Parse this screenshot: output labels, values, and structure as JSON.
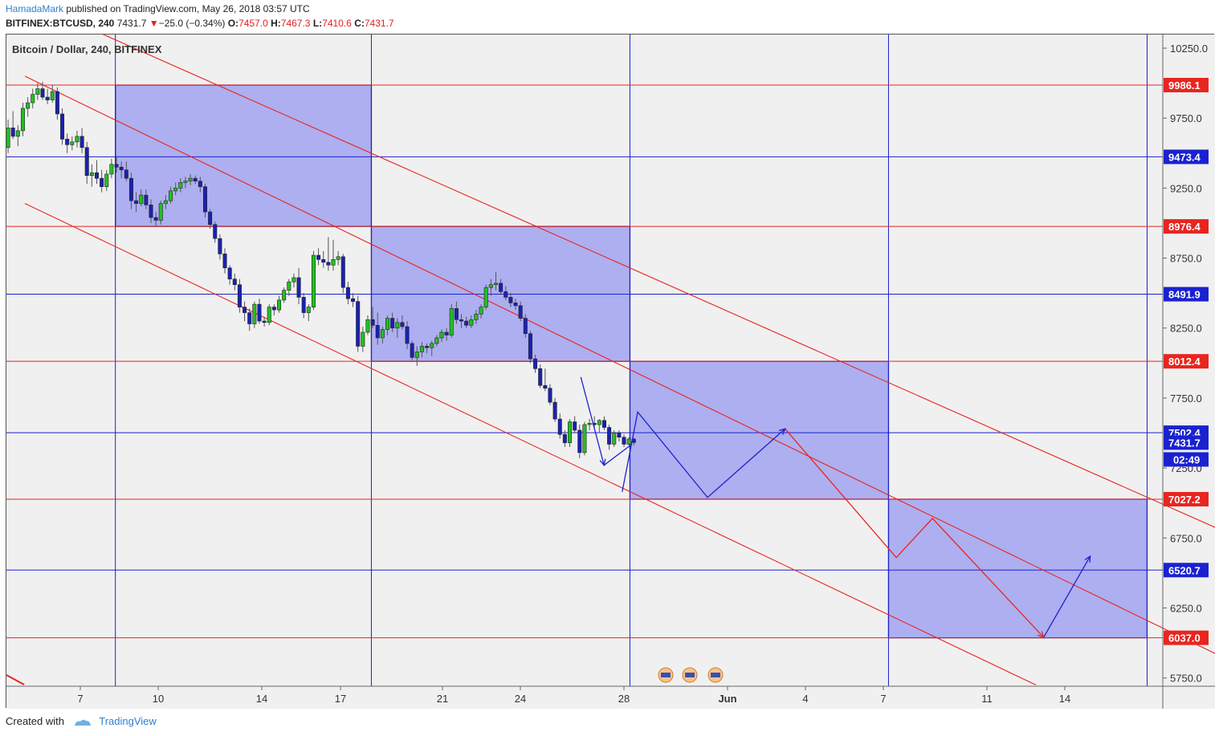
{
  "header": {
    "author": "HamadaMark",
    "published_text": "published on TradingView.com, May 26, 2018 03:57 UTC",
    "symbol": "BITFINEX:BTCUSD, 240",
    "last": "7431.7",
    "change": "−25.0 (−0.34%)",
    "open_label": "O:",
    "open": "7457.0",
    "high_label": "H:",
    "high": "7467.3",
    "low_label": "L:",
    "low": "7410.6",
    "close_label": "C:",
    "close": "7431.7"
  },
  "footer": {
    "created_with": "Created with",
    "brand": "TradingView"
  },
  "colors": {
    "red": "#e8251f",
    "blue": "#1a22d0",
    "box_fill": "#aeaff0",
    "up": "#22c022",
    "down": "#1a22b0",
    "background": "#f0f0f0"
  },
  "chart_data": {
    "type": "candlestick",
    "title": "Bitcoin / Dollar, 240, BITFINEX",
    "y_axis": {
      "ticks": [
        10250.0,
        9750.0,
        9250.0,
        8750.0,
        8250.0,
        7750.0,
        7250.0,
        6750.0,
        6250.0,
        5750.0
      ],
      "ylim": [
        5700,
        10500
      ]
    },
    "x_axis": {
      "tick_labels": [
        "7",
        "10",
        "14",
        "17",
        "21",
        "24",
        "28",
        "Jun",
        "4",
        "7",
        "11",
        "14"
      ]
    },
    "horizontal_levels": [
      {
        "label": "9986.1",
        "value": 9986.1,
        "color": "red"
      },
      {
        "label": "9473.4",
        "value": 9473.4,
        "color": "blue"
      },
      {
        "label": "8976.4",
        "value": 8976.4,
        "color": "red"
      },
      {
        "label": "8491.9",
        "value": 8491.9,
        "color": "blue"
      },
      {
        "label": "8012.4",
        "value": 8012.4,
        "color": "red"
      },
      {
        "label": "7502.4",
        "value": 7502.4,
        "color": "blue"
      },
      {
        "label": "7027.2",
        "value": 7027.2,
        "color": "red"
      },
      {
        "label": "6520.7",
        "value": 6520.7,
        "color": "blue"
      },
      {
        "label": "6037.0",
        "value": 6037.0,
        "color": "red"
      }
    ],
    "price_badge": {
      "label": "7431.7",
      "value": 7431.7
    },
    "countdown": "02:49",
    "boxes": [
      {
        "start_day": 4.4,
        "end_day": 14.3,
        "top": 9986.1,
        "bottom": 8976.4
      },
      {
        "start_day": 14.3,
        "end_day": 24.3,
        "top": 8976.4,
        "bottom": 8012.4
      },
      {
        "start_day": 24.3,
        "end_day": 34.3,
        "top": 8012.4,
        "bottom": 7027.2
      },
      {
        "start_day": 34.3,
        "end_day": 44.3,
        "top": 7027.2,
        "bottom": 6037.0
      }
    ],
    "channel_lines": [
      {
        "p1": [
          1.1,
          10580
        ],
        "p2": [
          48.1,
          6730
        ]
      },
      {
        "p1": [
          0.9,
          10050
        ],
        "p2": [
          48.1,
          5820
        ]
      },
      {
        "p1": [
          0.9,
          9140
        ],
        "p2": [
          40.0,
          5700
        ]
      }
    ],
    "projection_blue": [
      [
        24.0,
        7080
      ],
      [
        24.6,
        7650
      ],
      [
        27.3,
        7040
      ],
      [
        30.3,
        7530
      ]
    ],
    "projection_red": [
      [
        30.3,
        7530
      ],
      [
        34.6,
        6610
      ],
      [
        36.0,
        6890
      ],
      [
        40.3,
        6040
      ]
    ],
    "projection_blue_final": [
      [
        40.3,
        6040
      ],
      [
        42.1,
        6620
      ]
    ],
    "zigzag_blue": [
      [
        22.4,
        7900
      ],
      [
        23.3,
        7270
      ],
      [
        24.3,
        7410
      ]
    ],
    "candles_ohlc": [
      [
        9540,
        9740,
        9500,
        9680
      ],
      [
        9680,
        9800,
        9600,
        9620
      ],
      [
        9620,
        9700,
        9550,
        9660
      ],
      [
        9660,
        9860,
        9620,
        9820
      ],
      [
        9820,
        9900,
        9760,
        9860
      ],
      [
        9860,
        9960,
        9820,
        9920
      ],
      [
        9920,
        10000,
        9880,
        9960
      ],
      [
        9960,
        10010,
        9880,
        9900
      ],
      [
        9900,
        9960,
        9850,
        9880
      ],
      [
        9880,
        9990,
        9860,
        9940
      ],
      [
        9940,
        9970,
        9740,
        9780
      ],
      [
        9780,
        9820,
        9560,
        9600
      ],
      [
        9600,
        9640,
        9500,
        9560
      ],
      [
        9560,
        9620,
        9520,
        9580
      ],
      [
        9580,
        9660,
        9540,
        9620
      ],
      [
        9620,
        9680,
        9500,
        9540
      ],
      [
        9540,
        9580,
        9280,
        9340
      ],
      [
        9340,
        9420,
        9260,
        9360
      ],
      [
        9360,
        9450,
        9280,
        9320
      ],
      [
        9320,
        9380,
        9220,
        9260
      ],
      [
        9260,
        9380,
        9230,
        9350
      ],
      [
        9350,
        9460,
        9320,
        9420
      ],
      [
        9420,
        9480,
        9360,
        9400
      ],
      [
        9400,
        9440,
        9320,
        9380
      ],
      [
        9380,
        9440,
        9300,
        9320
      ],
      [
        9320,
        9360,
        9100,
        9160
      ],
      [
        9160,
        9220,
        9080,
        9140
      ],
      [
        9140,
        9240,
        9120,
        9200
      ],
      [
        9200,
        9240,
        9100,
        9130
      ],
      [
        9130,
        9170,
        9000,
        9040
      ],
      [
        9040,
        9080,
        8980,
        9020
      ],
      [
        9020,
        9160,
        8990,
        9140
      ],
      [
        9140,
        9200,
        9100,
        9160
      ],
      [
        9160,
        9260,
        9140,
        9230
      ],
      [
        9230,
        9290,
        9200,
        9250
      ],
      [
        9250,
        9320,
        9220,
        9290
      ],
      [
        9290,
        9330,
        9250,
        9300
      ],
      [
        9300,
        9350,
        9270,
        9320
      ],
      [
        9320,
        9340,
        9280,
        9300
      ],
      [
        9300,
        9330,
        9220,
        9260
      ],
      [
        9260,
        9280,
        9040,
        9080
      ],
      [
        9080,
        9100,
        8960,
        8990
      ],
      [
        8990,
        9010,
        8860,
        8890
      ],
      [
        8890,
        8920,
        8740,
        8780
      ],
      [
        8780,
        8820,
        8640,
        8680
      ],
      [
        8680,
        8700,
        8560,
        8600
      ],
      [
        8600,
        8640,
        8520,
        8560
      ],
      [
        8560,
        8600,
        8360,
        8400
      ],
      [
        8400,
        8440,
        8300,
        8360
      ],
      [
        8360,
        8390,
        8230,
        8280
      ],
      [
        8280,
        8440,
        8250,
        8420
      ],
      [
        8420,
        8460,
        8280,
        8300
      ],
      [
        8300,
        8330,
        8260,
        8290
      ],
      [
        8290,
        8420,
        8270,
        8400
      ],
      [
        8400,
        8420,
        8340,
        8380
      ],
      [
        8380,
        8480,
        8360,
        8450
      ],
      [
        8450,
        8540,
        8430,
        8520
      ],
      [
        8520,
        8600,
        8480,
        8580
      ],
      [
        8580,
        8640,
        8540,
        8610
      ],
      [
        8610,
        8680,
        8420,
        8470
      ],
      [
        8470,
        8500,
        8320,
        8360
      ],
      [
        8360,
        8420,
        8300,
        8400
      ],
      [
        8400,
        8800,
        8380,
        8770
      ],
      [
        8770,
        8820,
        8700,
        8740
      ],
      [
        8740,
        8800,
        8680,
        8720
      ],
      [
        8720,
        8900,
        8660,
        8700
      ],
      [
        8700,
        8880,
        8660,
        8740
      ],
      [
        8740,
        8800,
        8700,
        8760
      ],
      [
        8760,
        8780,
        8500,
        8540
      ],
      [
        8540,
        8580,
        8420,
        8460
      ],
      [
        8460,
        8500,
        8400,
        8440
      ],
      [
        8440,
        8480,
        8080,
        8120
      ],
      [
        8120,
        8260,
        8080,
        8220
      ],
      [
        8220,
        8340,
        8200,
        8310
      ],
      [
        8310,
        8400,
        8250,
        8270
      ],
      [
        8270,
        8360,
        8130,
        8180
      ],
      [
        8180,
        8260,
        8140,
        8240
      ],
      [
        8240,
        8340,
        8200,
        8320
      ],
      [
        8320,
        8360,
        8220,
        8250
      ],
      [
        8250,
        8320,
        8180,
        8290
      ],
      [
        8290,
        8340,
        8240,
        8260
      ],
      [
        8260,
        8300,
        8100,
        8140
      ],
      [
        8140,
        8160,
        8020,
        8040
      ],
      [
        8040,
        8120,
        7980,
        8080
      ],
      [
        8080,
        8150,
        8040,
        8120
      ],
      [
        8120,
        8140,
        8070,
        8110
      ],
      [
        8110,
        8160,
        8050,
        8140
      ],
      [
        8140,
        8200,
        8120,
        8180
      ],
      [
        8180,
        8240,
        8150,
        8220
      ],
      [
        8220,
        8250,
        8160,
        8200
      ],
      [
        8200,
        8420,
        8180,
        8390
      ],
      [
        8390,
        8440,
        8280,
        8310
      ],
      [
        8310,
        8350,
        8250,
        8300
      ],
      [
        8300,
        8330,
        8250,
        8270
      ],
      [
        8270,
        8340,
        8250,
        8310
      ],
      [
        8310,
        8380,
        8280,
        8350
      ],
      [
        8350,
        8420,
        8320,
        8400
      ],
      [
        8400,
        8560,
        8380,
        8540
      ],
      [
        8540,
        8600,
        8480,
        8560
      ],
      [
        8560,
        8650,
        8520,
        8570
      ],
      [
        8570,
        8600,
        8490,
        8510
      ],
      [
        8510,
        8550,
        8450,
        8470
      ],
      [
        8470,
        8500,
        8400,
        8430
      ],
      [
        8430,
        8460,
        8380,
        8410
      ],
      [
        8410,
        8440,
        8300,
        8320
      ],
      [
        8320,
        8350,
        8180,
        8210
      ],
      [
        8210,
        8230,
        8000,
        8030
      ],
      [
        8030,
        8060,
        7930,
        7960
      ],
      [
        7960,
        7990,
        7820,
        7840
      ],
      [
        7840,
        7960,
        7800,
        7820
      ],
      [
        7820,
        7850,
        7700,
        7720
      ],
      [
        7720,
        7750,
        7580,
        7600
      ],
      [
        7600,
        7640,
        7460,
        7490
      ],
      [
        7490,
        7520,
        7400,
        7430
      ],
      [
        7430,
        7600,
        7400,
        7580
      ],
      [
        7580,
        7620,
        7500,
        7520
      ],
      [
        7520,
        7560,
        7320,
        7360
      ],
      [
        7360,
        7580,
        7340,
        7560
      ],
      [
        7560,
        7600,
        7520,
        7570
      ],
      [
        7570,
        7620,
        7540,
        7560
      ],
      [
        7560,
        7600,
        7500,
        7590
      ],
      [
        7590,
        7620,
        7520,
        7540
      ],
      [
        7540,
        7560,
        7380,
        7420
      ],
      [
        7420,
        7520,
        7400,
        7500
      ],
      [
        7500,
        7520,
        7440,
        7470
      ],
      [
        7470,
        7490,
        7400,
        7420
      ],
      [
        7420,
        7470,
        7410,
        7457
      ],
      [
        7457,
        7467,
        7410,
        7432
      ]
    ]
  }
}
